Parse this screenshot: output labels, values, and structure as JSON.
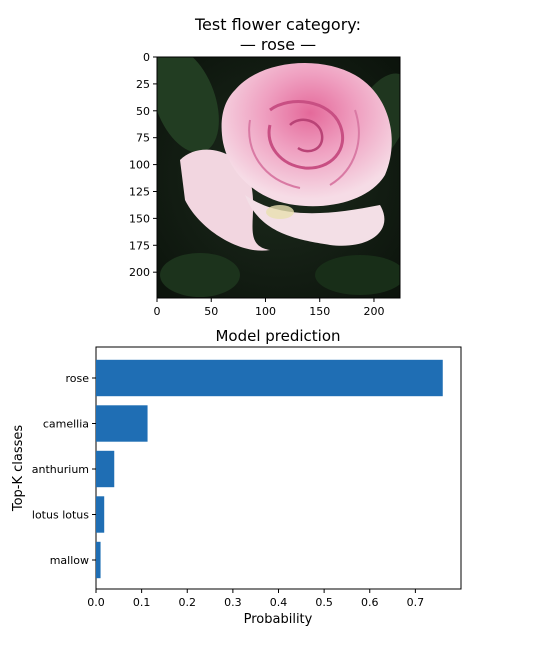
{
  "image_panel": {
    "title_line1": "Test flower category:",
    "title_line2": "— rose —",
    "image_description": "pink-rose-photo",
    "x_ticks": [
      0,
      50,
      100,
      150,
      200
    ],
    "y_ticks": [
      0,
      25,
      50,
      75,
      100,
      125,
      150,
      175,
      200
    ],
    "x_range": [
      0,
      224
    ],
    "y_range": [
      0,
      224
    ],
    "colors": {
      "background": "#0f1a10",
      "petal_light": "#f4dbe3",
      "petal_mid": "#ee9fbe",
      "petal_deep": "#e06a9a",
      "leaf": "#2a4a2a"
    }
  },
  "chart_data": {
    "type": "bar",
    "orientation": "horizontal",
    "title": "Model prediction",
    "xlabel": "Probability",
    "ylabel": "Top-K classes",
    "categories": [
      "rose",
      "camellia",
      "anthurium",
      "lotus lotus",
      "mallow"
    ],
    "values": [
      0.76,
      0.113,
      0.04,
      0.018,
      0.01
    ],
    "xlim": [
      0,
      0.8
    ],
    "x_ticks": [
      "0.0",
      "0.1",
      "0.2",
      "0.3",
      "0.4",
      "0.5",
      "0.6",
      "0.7"
    ],
    "bar_color": "#1f6eb4",
    "grid": false,
    "legend": "none"
  }
}
